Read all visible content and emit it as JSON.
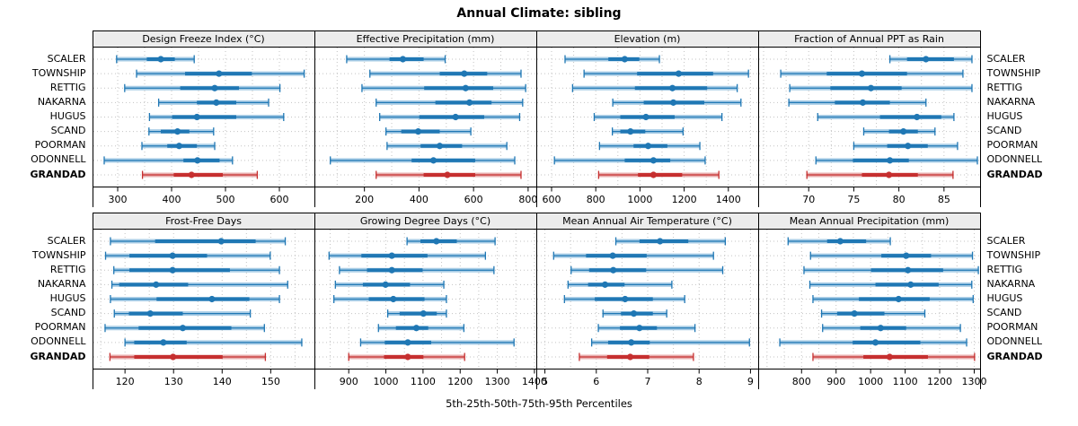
{
  "title": "Annual Climate: sibling",
  "xlabel": "5th-25th-50th-75th-95th Percentiles",
  "categories": [
    "SCALER",
    "TOWNSHIP",
    "RETTIG",
    "NAKARNA",
    "HUGUS",
    "SCAND",
    "POORMAN",
    "ODONNELL",
    "GRANDAD"
  ],
  "highlight_category": "GRANDAD",
  "colors": {
    "accent_blue": "#1f77b4",
    "accent_blue_light": "#a9cde6",
    "accent_red": "#c62f2f",
    "accent_red_light": "#e8aeae",
    "strip_bg": "#ececec",
    "grid": "#c3c3c3",
    "border": "#000000"
  },
  "chart_data": {
    "type": "scatter",
    "variant": "percentile-interval-dotplot",
    "title": "Annual Climate: sibling",
    "xlabel": "5th-25th-50th-75th-95th Percentiles",
    "percentiles": [
      5,
      25,
      50,
      75,
      95
    ],
    "rows": [
      "SCALER",
      "TOWNSHIP",
      "RETTIG",
      "NAKARNA",
      "HUGUS",
      "SCAND",
      "POORMAN",
      "ODONNELL",
      "GRANDAD"
    ],
    "highlight_row": "GRANDAD",
    "layout": {
      "panel_rows": 2,
      "panel_cols": 4,
      "grid": "dotted",
      "row_labels": "both-sides"
    },
    "panels": [
      {
        "title": "Design Freeze Index (°C)",
        "xlim": [
          255,
          665
        ],
        "ticks": [
          300,
          400,
          500,
          600
        ],
        "values": {
          "SCALER": [
            298,
            354,
            380,
            406,
            442
          ],
          "TOWNSHIP": [
            335,
            425,
            488,
            549,
            646
          ],
          "RETTIG": [
            313,
            416,
            480,
            525,
            601
          ],
          "NAKARNA": [
            376,
            447,
            483,
            520,
            580
          ],
          "HUGUS": [
            359,
            401,
            447,
            520,
            608
          ],
          "SCAND": [
            358,
            380,
            411,
            433,
            478
          ],
          "POORMAN": [
            345,
            392,
            414,
            447,
            480
          ],
          "ODONNELL": [
            275,
            422,
            448,
            489,
            513
          ],
          "GRANDAD": [
            346,
            404,
            437,
            495,
            559
          ]
        }
      },
      {
        "title": "Effective Precipitation (mm)",
        "xlim": [
          20,
          830
        ],
        "ticks": [
          200,
          400,
          600,
          800
        ],
        "values": {
          "SCALER": [
            135,
            292,
            341,
            417,
            496
          ],
          "TOWNSHIP": [
            220,
            476,
            566,
            650,
            774
          ],
          "RETTIG": [
            191,
            419,
            571,
            672,
            791
          ],
          "NAKARNA": [
            243,
            460,
            585,
            666,
            780
          ],
          "HUGUS": [
            256,
            401,
            534,
            639,
            769
          ],
          "SCAND": [
            279,
            335,
            397,
            476,
            590
          ],
          "POORMAN": [
            283,
            406,
            476,
            558,
            722
          ],
          "ODONNELL": [
            75,
            373,
            453,
            606,
            751
          ],
          "GRANDAD": [
            243,
            417,
            504,
            606,
            774
          ]
        }
      },
      {
        "title": "Elevation (m)",
        "xlim": [
          535,
          1535
        ],
        "ticks": [
          600,
          800,
          1000,
          1200,
          1400
        ],
        "values": {
          "SCALER": [
            661,
            857,
            931,
            997,
            1088
          ],
          "TOWNSHIP": [
            747,
            987,
            1175,
            1331,
            1491
          ],
          "RETTIG": [
            695,
            977,
            1147,
            1304,
            1440
          ],
          "NAKARNA": [
            877,
            1017,
            1151,
            1291,
            1457
          ],
          "HUGUS": [
            793,
            911,
            1027,
            1157,
            1371
          ],
          "SCAND": [
            875,
            911,
            957,
            1024,
            1195
          ],
          "POORMAN": [
            817,
            971,
            1037,
            1124,
            1271
          ],
          "ODONNELL": [
            613,
            931,
            1061,
            1137,
            1295
          ],
          "GRANDAD": [
            813,
            991,
            1061,
            1191,
            1357
          ]
        }
      },
      {
        "title": "Fraction of Annual PPT as Rain",
        "xlim": [
          64.5,
          89
        ],
        "ticks": [
          70,
          75,
          80,
          85
        ],
        "values": {
          "SCALER": [
            79.0,
            80.9,
            83.0,
            86.1,
            88.1
          ],
          "TOWNSHIP": [
            66.9,
            72.0,
            75.9,
            80.9,
            87.1
          ],
          "RETTIG": [
            67.9,
            72.4,
            76.9,
            80.3,
            88.1
          ],
          "NAKARNA": [
            67.8,
            72.9,
            76.0,
            79.0,
            83.0
          ],
          "HUGUS": [
            71.0,
            77.9,
            82.0,
            84.7,
            86.1
          ],
          "SCAND": [
            76.1,
            78.9,
            80.5,
            82.1,
            84.0
          ],
          "POORMAN": [
            75.0,
            78.7,
            81.0,
            83.2,
            86.5
          ],
          "ODONNELL": [
            70.8,
            74.9,
            79.0,
            81.1,
            88.7
          ],
          "GRANDAD": [
            69.8,
            75.9,
            78.9,
            82.1,
            86.0
          ]
        }
      },
      {
        "title": "Frost-Free Days",
        "xlim": [
          113.5,
          159
        ],
        "ticks": [
          120,
          130,
          140,
          150
        ],
        "values": {
          "SCALER": [
            117.0,
            126.2,
            139.8,
            146.9,
            153.0
          ],
          "TOWNSHIP": [
            116.0,
            120.9,
            129.8,
            136.9,
            149.9
          ],
          "RETTIG": [
            117.7,
            120.9,
            129.8,
            141.6,
            151.8
          ],
          "NAKARNA": [
            117.3,
            118.8,
            126.4,
            133.0,
            153.5
          ],
          "HUGUS": [
            117.0,
            126.5,
            137.9,
            145.6,
            151.8
          ],
          "SCAND": [
            117.8,
            120.8,
            125.2,
            131.9,
            145.8
          ],
          "POORMAN": [
            115.9,
            122.8,
            131.9,
            141.9,
            148.7
          ],
          "ODONNELL": [
            120.0,
            121.9,
            127.9,
            132.7,
            156.4
          ],
          "GRANDAD": [
            116.9,
            121.9,
            129.9,
            140.1,
            148.9
          ]
        }
      },
      {
        "title": "Growing Degree Days (°C)",
        "xlim": [
          810,
          1405
        ],
        "ticks": [
          900,
          1000,
          1100,
          1200,
          1300,
          1400
        ],
        "values": {
          "SCALER": [
            1057,
            1093,
            1136,
            1191,
            1294
          ],
          "TOWNSHIP": [
            847,
            934,
            1016,
            1112,
            1268
          ],
          "RETTIG": [
            875,
            949,
            1016,
            1099,
            1291
          ],
          "NAKARNA": [
            864,
            938,
            999,
            1065,
            1156
          ],
          "HUGUS": [
            860,
            954,
            1020,
            1104,
            1163
          ],
          "SCAND": [
            1005,
            1037,
            1101,
            1137,
            1163
          ],
          "POORMAN": [
            980,
            1027,
            1082,
            1114,
            1210
          ],
          "ODONNELL": [
            932,
            997,
            1059,
            1122,
            1345
          ],
          "GRANDAD": [
            900,
            995,
            1059,
            1101,
            1212
          ]
        }
      },
      {
        "title": "Mean Annual Air Temperature (°C)",
        "xlim": [
          4.85,
          9.15
        ],
        "ticks": [
          5,
          6,
          7,
          8,
          9
        ],
        "values": {
          "SCALER": [
            6.38,
            6.84,
            7.24,
            7.79,
            8.51
          ],
          "TOWNSHIP": [
            5.17,
            5.8,
            6.32,
            6.98,
            8.28
          ],
          "RETTIG": [
            5.51,
            5.86,
            6.33,
            6.97,
            8.46
          ],
          "NAKARNA": [
            5.45,
            5.84,
            6.17,
            6.55,
            7.47
          ],
          "HUGUS": [
            5.38,
            5.97,
            6.56,
            7.1,
            7.72
          ],
          "SCAND": [
            6.13,
            6.48,
            6.73,
            7.1,
            7.37
          ],
          "POORMAN": [
            6.04,
            6.46,
            6.84,
            7.18,
            7.92
          ],
          "ODONNELL": [
            5.91,
            6.23,
            6.68,
            7.04,
            8.98
          ],
          "GRANDAD": [
            5.67,
            6.21,
            6.66,
            7.03,
            7.89
          ]
        }
      },
      {
        "title": "Mean Annual Precipitation (mm)",
        "xlim": [
          677,
          1317
        ],
        "ticks": [
          800,
          900,
          1000,
          1100,
          1200,
          1300
        ],
        "values": {
          "SCALER": [
            761,
            874,
            912,
            987,
            1057
          ],
          "TOWNSHIP": [
            826,
            1031,
            1103,
            1175,
            1295
          ],
          "RETTIG": [
            807,
            1001,
            1108,
            1210,
            1312
          ],
          "NAKARNA": [
            824,
            1014,
            1116,
            1197,
            1293
          ],
          "HUGUS": [
            833,
            966,
            1081,
            1171,
            1297
          ],
          "SCAND": [
            858,
            903,
            953,
            1040,
            1157
          ],
          "POORMAN": [
            861,
            970,
            1029,
            1103,
            1260
          ],
          "ODONNELL": [
            737,
            948,
            1014,
            1144,
            1278
          ],
          "GRANDAD": [
            833,
            979,
            1055,
            1166,
            1301
          ]
        }
      }
    ]
  }
}
